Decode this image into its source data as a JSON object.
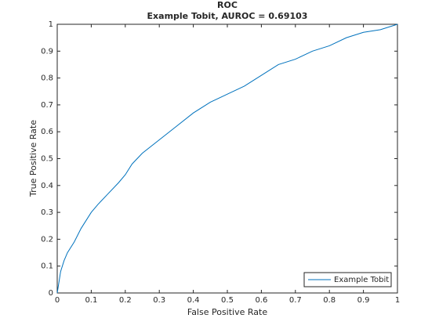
{
  "chart_data": {
    "type": "line",
    "title": "ROC",
    "subtitle": "Example Tobit, AUROC = 0.69103",
    "xlabel": "False Positive Rate",
    "ylabel": "True Positive Rate",
    "x": [
      0,
      0.01,
      0.02,
      0.03,
      0.05,
      0.07,
      0.1,
      0.12,
      0.15,
      0.18,
      0.2,
      0.22,
      0.25,
      0.3,
      0.35,
      0.4,
      0.45,
      0.5,
      0.55,
      0.6,
      0.65,
      0.7,
      0.75,
      0.8,
      0.85,
      0.9,
      0.95,
      1
    ],
    "series": [
      {
        "name": "Example Tobit",
        "color": "#0072bd",
        "values": [
          0,
          0.08,
          0.12,
          0.15,
          0.19,
          0.24,
          0.3,
          0.33,
          0.37,
          0.41,
          0.44,
          0.48,
          0.52,
          0.57,
          0.62,
          0.67,
          0.71,
          0.74,
          0.77,
          0.81,
          0.85,
          0.87,
          0.9,
          0.92,
          0.95,
          0.97,
          0.98,
          1
        ]
      }
    ],
    "xlim": [
      0,
      1
    ],
    "ylim": [
      0,
      1
    ],
    "xticks": [
      0,
      0.1,
      0.2,
      0.3,
      0.4,
      0.5,
      0.6,
      0.7,
      0.8,
      0.9,
      1
    ],
    "yticks": [
      0,
      0.1,
      0.2,
      0.3,
      0.4,
      0.5,
      0.6,
      0.7,
      0.8,
      0.9,
      1
    ],
    "grid": false,
    "legend": "southeast"
  }
}
